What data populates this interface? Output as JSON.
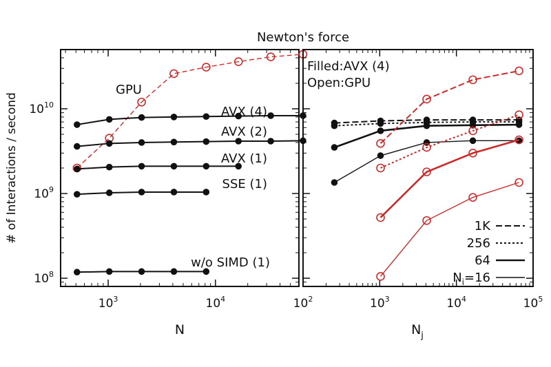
{
  "title": "Newton's force",
  "colors": {
    "black": "#111111",
    "red": "#cc2a2a",
    "light": "#777777"
  },
  "chart_data": [
    {
      "type": "line",
      "panel": "left",
      "xlabel": "N",
      "ylabel": "# of Interactions / second",
      "xscale": "log",
      "yscale": "log",
      "xlim": [
        360,
        60000
      ],
      "ylim": [
        80000000,
        50000000000
      ],
      "xticks": [
        {
          "base": "10",
          "exp": "3",
          "value": 1000
        },
        {
          "base": "10",
          "exp": "4",
          "value": 10000
        }
      ],
      "yticks": [
        {
          "base": "10",
          "exp": "8",
          "value": 100000000
        },
        {
          "base": "10",
          "exp": "9",
          "value": 1000000000
        },
        {
          "base": "10",
          "exp": "10",
          "value": 10000000000
        }
      ],
      "series": [
        {
          "name": "GPU",
          "color": "#cc2a2a",
          "marker": "open-circle",
          "dash": "dashed",
          "x": [
            512,
            1024,
            2048,
            4096,
            8192,
            16384,
            32768,
            65536
          ],
          "y": [
            2000000000,
            4500000000,
            12000000000,
            26000000000,
            31000000000,
            36000000000,
            41000000000,
            44000000000
          ]
        },
        {
          "name": "AVX (4)",
          "color": "#111111",
          "marker": "filled-circle",
          "dash": "solid",
          "x": [
            512,
            1024,
            2048,
            4096,
            8192,
            16384,
            32768,
            65536
          ],
          "y": [
            6500000000,
            7500000000,
            7900000000,
            8000000000,
            8100000000,
            8200000000,
            8300000000,
            8300000000
          ]
        },
        {
          "name": "AVX (2)",
          "color": "#111111",
          "marker": "filled-circle",
          "dash": "solid",
          "x": [
            512,
            1024,
            2048,
            4096,
            8192,
            16384,
            32768,
            65536
          ],
          "y": [
            3600000000,
            3900000000,
            4000000000,
            4050000000,
            4100000000,
            4150000000,
            4150000000,
            4200000000
          ]
        },
        {
          "name": "AVX (1)",
          "color": "#111111",
          "marker": "filled-circle",
          "dash": "solid",
          "x": [
            512,
            1024,
            2048,
            4096,
            8192,
            16384
          ],
          "y": [
            1950000000,
            2050000000,
            2100000000,
            2100000000,
            2100000000,
            2100000000
          ]
        },
        {
          "name": "SSE (1)",
          "color": "#111111",
          "marker": "filled-circle",
          "dash": "solid",
          "x": [
            512,
            1024,
            2048,
            4096,
            8192
          ],
          "y": [
            980000000,
            1020000000,
            1040000000,
            1040000000,
            1040000000
          ]
        },
        {
          "name": "w/o SIMD (1)",
          "color": "#111111",
          "marker": "filled-circle",
          "dash": "solid",
          "x": [
            512,
            1024,
            2048,
            4096,
            8192
          ],
          "y": [
            118000000,
            120000000,
            120000000,
            120000000,
            120000000
          ]
        }
      ],
      "annotations": [
        {
          "text": "GPU",
          "color": "#cc2a2a"
        },
        {
          "text": "AVX (4)"
        },
        {
          "text": "AVX (2)"
        },
        {
          "text": "AVX (1)"
        },
        {
          "text": "SSE (1)"
        },
        {
          "text": "w/o SIMD (1)"
        }
      ]
    },
    {
      "type": "line",
      "panel": "right",
      "xlabel": "N",
      "xlabel_sub": "j",
      "xscale": "log",
      "yscale": "log",
      "xlim": [
        100,
        100000
      ],
      "ylim": [
        80000000,
        50000000000
      ],
      "xticks": [
        {
          "base": "10",
          "exp": "2",
          "value": 100
        },
        {
          "base": "10",
          "exp": "3",
          "value": 1000
        },
        {
          "base": "10",
          "exp": "4",
          "value": 10000
        },
        {
          "base": "10",
          "exp": "5",
          "value": 100000
        }
      ],
      "annotations": [
        {
          "text": "Filled:AVX (4)",
          "color": "#111111"
        },
        {
          "text": "Open:GPU",
          "color": "#cc2a2a"
        }
      ],
      "legend": {
        "position": "bottom-right",
        "entries": [
          {
            "label": "1K",
            "dash": "long-dash"
          },
          {
            "label": "256",
            "dash": "short-dash"
          },
          {
            "label": "64",
            "dash": "solid-thick"
          },
          {
            "label": "N",
            "sub": "i",
            "suffix": "=16",
            "dash": "solid-thin"
          }
        ]
      },
      "series": [
        {
          "group": "AVX (4)",
          "ni": "1K",
          "color": "#111111",
          "marker": "filled-circle",
          "dash": "long-dash",
          "x": [
            256,
            1024,
            4096,
            16384,
            65536
          ],
          "y": [
            6800000000,
            7200000000,
            7400000000,
            7400000000,
            7400000000
          ]
        },
        {
          "group": "AVX (4)",
          "ni": "256",
          "color": "#111111",
          "marker": "filled-circle",
          "dash": "short-dash",
          "x": [
            256,
            1024,
            4096,
            16384,
            65536
          ],
          "y": [
            6300000000,
            6700000000,
            6900000000,
            7000000000,
            7000000000
          ]
        },
        {
          "group": "AVX (4)",
          "ni": "64",
          "color": "#111111",
          "marker": "filled-circle",
          "dash": "solid-thick",
          "x": [
            256,
            1024,
            4096,
            16384,
            65536
          ],
          "y": [
            3500000000,
            5500000000,
            6300000000,
            6400000000,
            6500000000
          ]
        },
        {
          "group": "AVX (4)",
          "ni": "N_i=16",
          "color": "#111111",
          "marker": "filled-circle",
          "dash": "solid-thin",
          "x": [
            256,
            1024,
            4096,
            16384,
            65536
          ],
          "y": [
            1350000000,
            2800000000,
            4000000000,
            4200000000,
            4200000000
          ]
        },
        {
          "group": "GPU",
          "ni": "1K",
          "color": "#cc2a2a",
          "marker": "open-circle",
          "dash": "long-dash",
          "x": [
            1024,
            4096,
            16384,
            65536
          ],
          "y": [
            3900000000,
            13000000000,
            22000000000,
            28000000000
          ]
        },
        {
          "group": "GPU",
          "ni": "256",
          "color": "#cc2a2a",
          "marker": "open-circle",
          "dash": "short-dash",
          "x": [
            1024,
            4096,
            16384,
            65536
          ],
          "y": [
            2000000000,
            3500000000,
            5500000000,
            8500000000
          ]
        },
        {
          "group": "GPU",
          "ni": "64",
          "color": "#cc2a2a",
          "marker": "open-circle",
          "dash": "solid-thick",
          "x": [
            1024,
            4096,
            16384,
            65536
          ],
          "y": [
            520000000,
            1800000000,
            3000000000,
            4300000000
          ]
        },
        {
          "group": "GPU",
          "ni": "N_i=16",
          "color": "#cc2a2a",
          "marker": "open-circle",
          "dash": "solid-thin",
          "x": [
            1024,
            4096,
            16384,
            65536
          ],
          "y": [
            105000000,
            480000000,
            900000000,
            1350000000
          ]
        }
      ]
    }
  ]
}
